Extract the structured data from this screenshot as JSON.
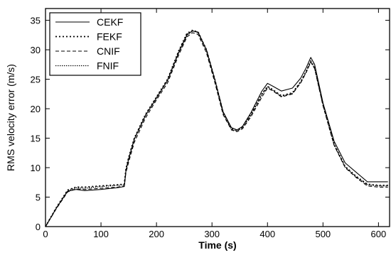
{
  "chart_data": {
    "type": "line",
    "xlabel": "Time (s)",
    "ylabel": "RMS velocity error (m/s)",
    "xlim": [
      0,
      620
    ],
    "ylim": [
      0,
      37
    ],
    "xticks": [
      "0",
      "100",
      "200",
      "300",
      "400",
      "500",
      "600"
    ],
    "yticks": [
      "0",
      "5",
      "10",
      "15",
      "20",
      "25",
      "30",
      "35"
    ],
    "grid": false,
    "legend_position": "top-left",
    "series": [
      {
        "name": "CEKF",
        "dash": "solid",
        "x": [
          0,
          20,
          40,
          55,
          70,
          100,
          130,
          142,
          145,
          150,
          160,
          180,
          200,
          220,
          240,
          255,
          265,
          275,
          290,
          305,
          320,
          335,
          345,
          355,
          370,
          390,
          400,
          410,
          425,
          445,
          460,
          470,
          478,
          485,
          500,
          520,
          540,
          560,
          580,
          600,
          617
        ],
        "y": [
          0,
          3.2,
          6.0,
          6.3,
          6.1,
          6.3,
          6.6,
          6.8,
          9.5,
          11.5,
          14.8,
          18.8,
          21.8,
          24.8,
          29.5,
          32.5,
          33.2,
          33.0,
          30.0,
          25.0,
          19.5,
          16.8,
          16.4,
          17.0,
          19.3,
          23.0,
          24.3,
          23.8,
          23.0,
          23.5,
          25.2,
          27.0,
          28.7,
          27.5,
          21.0,
          14.5,
          10.8,
          9.2,
          7.6,
          7.6,
          7.6
        ]
      },
      {
        "name": "FEKF",
        "dash": "dot",
        "x": [
          0,
          20,
          40,
          55,
          70,
          100,
          130,
          142,
          145,
          150,
          160,
          180,
          200,
          220,
          240,
          255,
          265,
          275,
          290,
          305,
          320,
          335,
          345,
          355,
          370,
          390,
          400,
          410,
          425,
          445,
          460,
          470,
          478,
          485,
          500,
          520,
          540,
          560,
          580,
          600,
          617
        ],
        "y": [
          0,
          3.3,
          6.2,
          6.7,
          6.7,
          6.9,
          7.1,
          7.2,
          9.8,
          11.8,
          15.0,
          19.0,
          22.0,
          25.0,
          29.8,
          32.8,
          33.3,
          33.0,
          30.0,
          25.0,
          19.4,
          16.6,
          16.3,
          16.9,
          19.0,
          22.5,
          23.8,
          23.2,
          22.2,
          22.7,
          24.6,
          26.4,
          28.1,
          27.0,
          20.8,
          14.0,
          10.2,
          8.5,
          7.2,
          7.0,
          7.0
        ]
      },
      {
        "name": "CNIF",
        "dash": "dash",
        "x": [
          0,
          20,
          40,
          55,
          70,
          100,
          130,
          142,
          145,
          150,
          160,
          180,
          200,
          220,
          240,
          255,
          265,
          275,
          290,
          305,
          320,
          335,
          345,
          355,
          370,
          390,
          400,
          410,
          425,
          445,
          460,
          470,
          478,
          485,
          500,
          520,
          540,
          560,
          580,
          600,
          617
        ],
        "y": [
          0,
          3.1,
          5.9,
          6.4,
          6.3,
          6.5,
          6.7,
          6.9,
          9.2,
          11.0,
          14.3,
          18.4,
          21.5,
          24.4,
          29.1,
          32.2,
          32.9,
          32.6,
          29.5,
          24.5,
          19.0,
          16.4,
          16.1,
          16.6,
          18.6,
          22.0,
          23.5,
          23.0,
          22.0,
          22.5,
          24.4,
          26.2,
          27.9,
          26.8,
          20.5,
          13.8,
          10.0,
          8.3,
          6.9,
          6.7,
          6.7
        ]
      },
      {
        "name": "FNIF",
        "dash": "densedot",
        "x": [
          0,
          20,
          40,
          55,
          70,
          100,
          130,
          142,
          145,
          150,
          160,
          180,
          200,
          220,
          240,
          255,
          265,
          275,
          290,
          305,
          320,
          335,
          345,
          355,
          370,
          390,
          400,
          410,
          425,
          445,
          460,
          470,
          478,
          485,
          500,
          520,
          540,
          560,
          580,
          600,
          617
        ],
        "y": [
          0,
          3.2,
          6.1,
          6.6,
          6.5,
          6.8,
          7.0,
          7.1,
          9.6,
          11.6,
          14.9,
          18.9,
          21.9,
          24.9,
          29.7,
          32.7,
          33.2,
          32.9,
          29.9,
          24.9,
          19.3,
          16.5,
          16.2,
          16.8,
          18.9,
          22.4,
          23.7,
          23.1,
          22.1,
          22.6,
          24.5,
          26.3,
          28.0,
          26.9,
          20.7,
          13.9,
          10.1,
          8.4,
          7.1,
          6.9,
          6.9
        ]
      }
    ]
  },
  "colors": {
    "axis": "#000000",
    "line": "#000000",
    "background": "#ffffff"
  }
}
